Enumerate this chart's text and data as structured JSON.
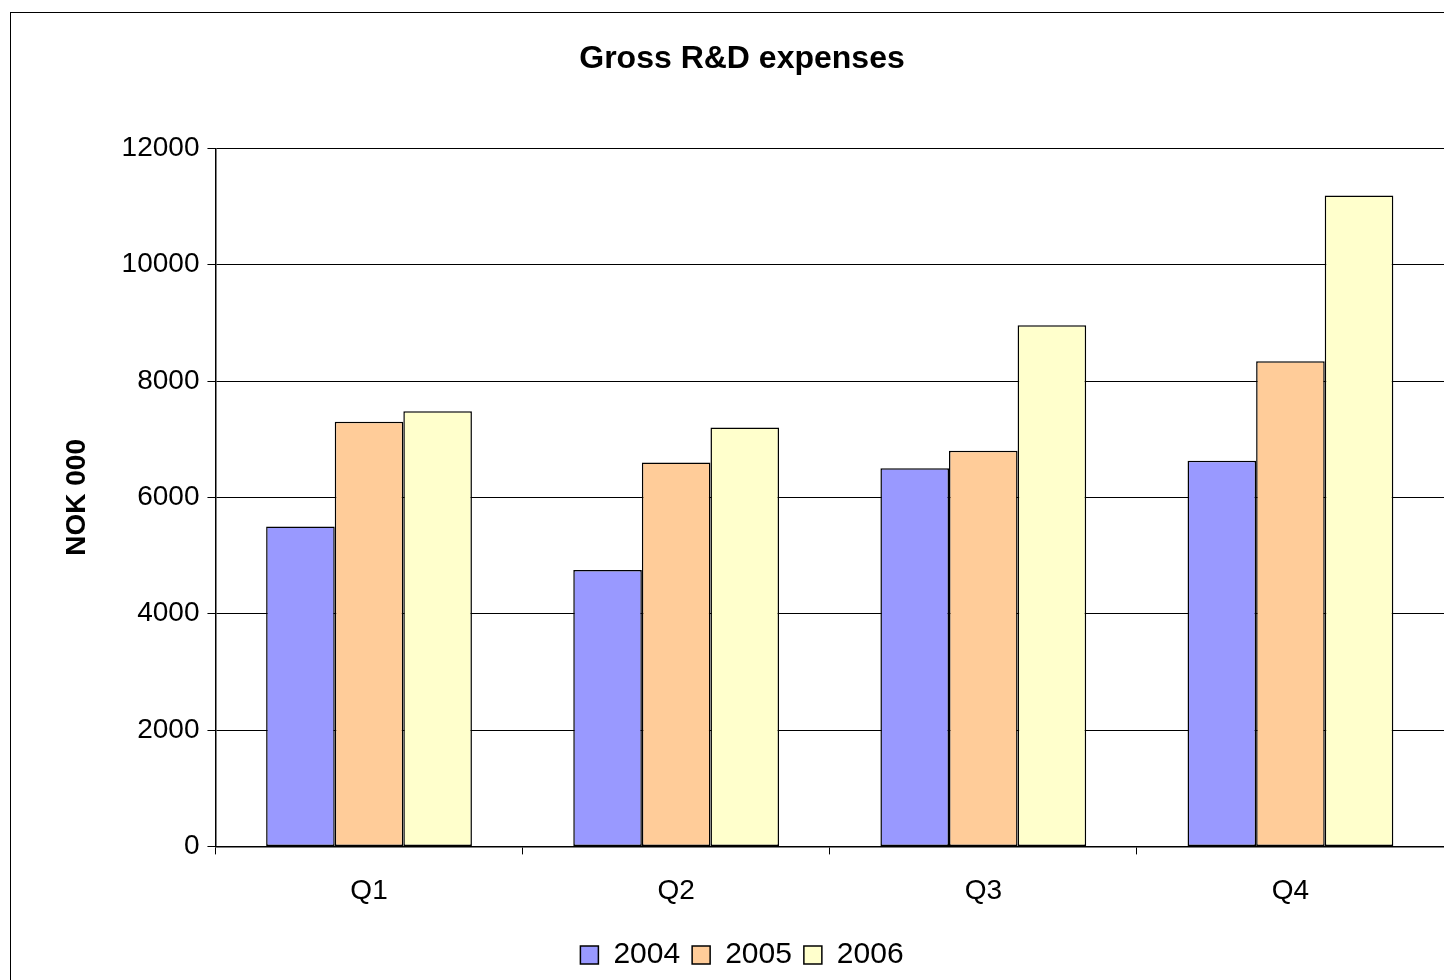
{
  "chart_data": {
    "type": "bar",
    "title": "Gross R&D expenses",
    "ylabel": "NOK 000",
    "categories": [
      "Q1",
      "Q2",
      "Q3",
      "Q4"
    ],
    "series": [
      {
        "name": "2004",
        "color": "#9999ff",
        "values": [
          5500,
          4750,
          6500,
          6630
        ]
      },
      {
        "name": "2005",
        "color": "#ffcc99",
        "values": [
          7300,
          6600,
          6800,
          8340
        ]
      },
      {
        "name": "2006",
        "color": "#ffffcc",
        "values": [
          7480,
          7200,
          8960,
          11190
        ]
      }
    ],
    "ylim": [
      0,
      12000
    ],
    "yticks": [
      0,
      2000,
      4000,
      6000,
      8000,
      10000,
      12000
    ],
    "grid": "y",
    "legend": "bottom"
  }
}
